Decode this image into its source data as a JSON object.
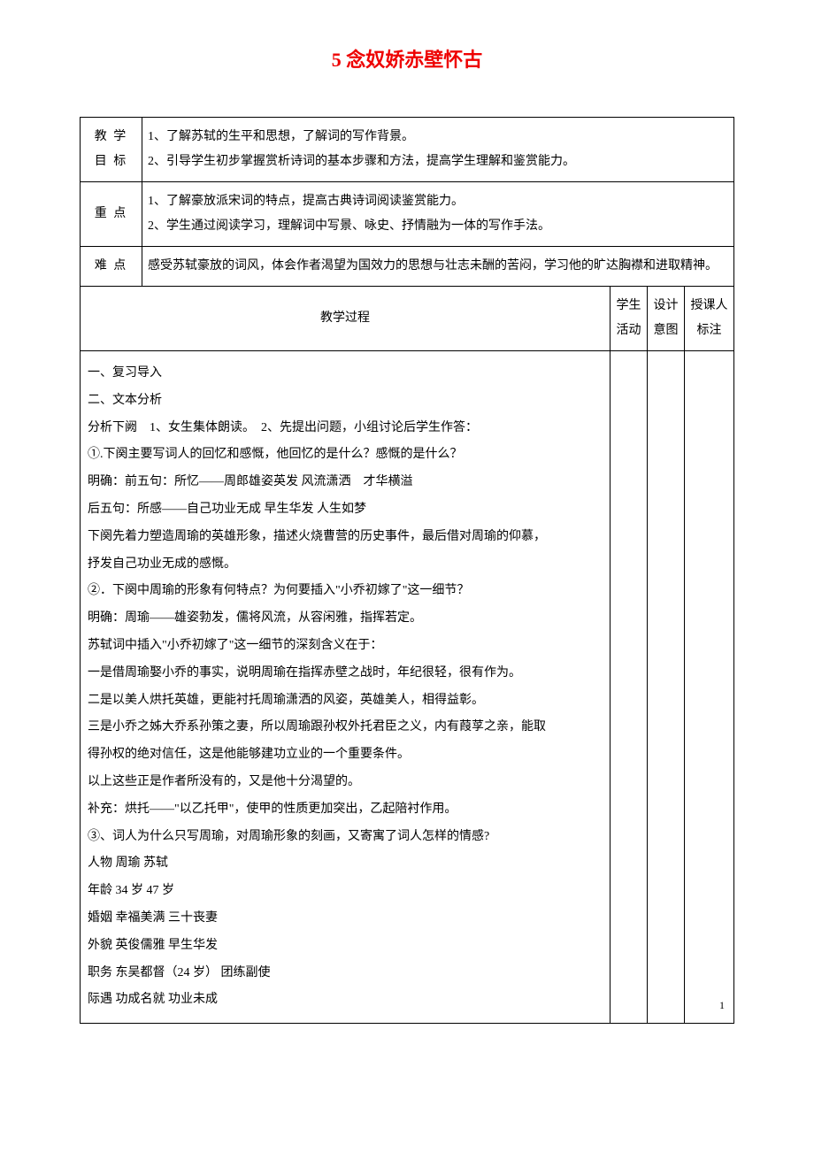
{
  "title": "5 念奴娇赤壁怀古",
  "rows": {
    "goal_label": "教 学\n目 标",
    "goal_content": "1、了解苏轼的生平和思想，了解词的写作背景。\n2、引导学生初步掌握赏析诗词的基本步骤和方法，提高学生理解和鉴赏能力。",
    "focus_label": "重 点",
    "focus_content": " 1、了解豪放派宋词的特点，提高古典诗词阅读鉴赏能力。\n2、学生通过阅读学习，理解词中写景、咏史、抒情融为一体的写作手法。",
    "difficulty_label": "难 点",
    "difficulty_content": "感受苏轼豪放的词风，体会作者渴望为国效力的思想与壮志未酬的苦闷，学习他的旷达胸襟和进取精神。",
    "process_label": "教学过程",
    "col_activity": "学生\n活动",
    "col_intent": "设计\n意图",
    "col_note": "授课人\n标注"
  },
  "content_lines": [
    "一、复习导入",
    "二、文本分析",
    "分析下阙　1、女生集体朗读。　2、先提出问题，小组讨论后学生作答：",
    "①.下阕主要写词人的回忆和感慨，他回忆的是什么？感慨的是什么？",
    "明确：前五句：所忆——周郎雄姿英发 风流潇洒　才华横溢",
    "后五句：所感——自己功业无成 早生华发 人生如梦",
    "下阕先着力塑造周瑜的英雄形象，描述火烧曹营的历史事件，最后借对周瑜的仰慕，",
    "抒发自己功业无成的感慨。",
    "②．下阕中周瑜的形象有何特点？为何要插入\"小乔初嫁了\"这一细节？",
    "明确：周瑜——雄姿勃发，儒将风流，从容闲雅，指挥若定。",
    "苏轼词中插入\"小乔初嫁了\"这一细节的深刻含义在于：",
    "一是借周瑜娶小乔的事实，说明周瑜在指挥赤壁之战时，年纪很轻，很有作为。",
    "二是以美人烘托英雄，更能衬托周瑜潇洒的风姿，英雄美人，相得益彰。",
    "三是小乔之姊大乔系孙策之妻，所以周瑜跟孙权外托君臣之义，内有葭莩之亲，能取",
    "得孙权的绝对信任，这是他能够建功立业的一个重要条件。",
    "以上这些正是作者所没有的，又是他十分渴望的。",
    "补充：烘托——\"以乙托甲\"，使甲的性质更加突出，乙起陪衬作用。",
    "③、词人为什么只写周瑜，对周瑜形象的刻画，又寄寓了词人怎样的情感?",
    "人物    周瑜     苏轼",
    "年龄    34 岁    47 岁",
    "婚姻    幸福美满    三十丧妻",
    "外貌    英俊儒雅    早生华发",
    "职务    东吴都督（24 岁）   团练副使",
    "际遇    功成名就    功业未成"
  ],
  "page_number": "1"
}
